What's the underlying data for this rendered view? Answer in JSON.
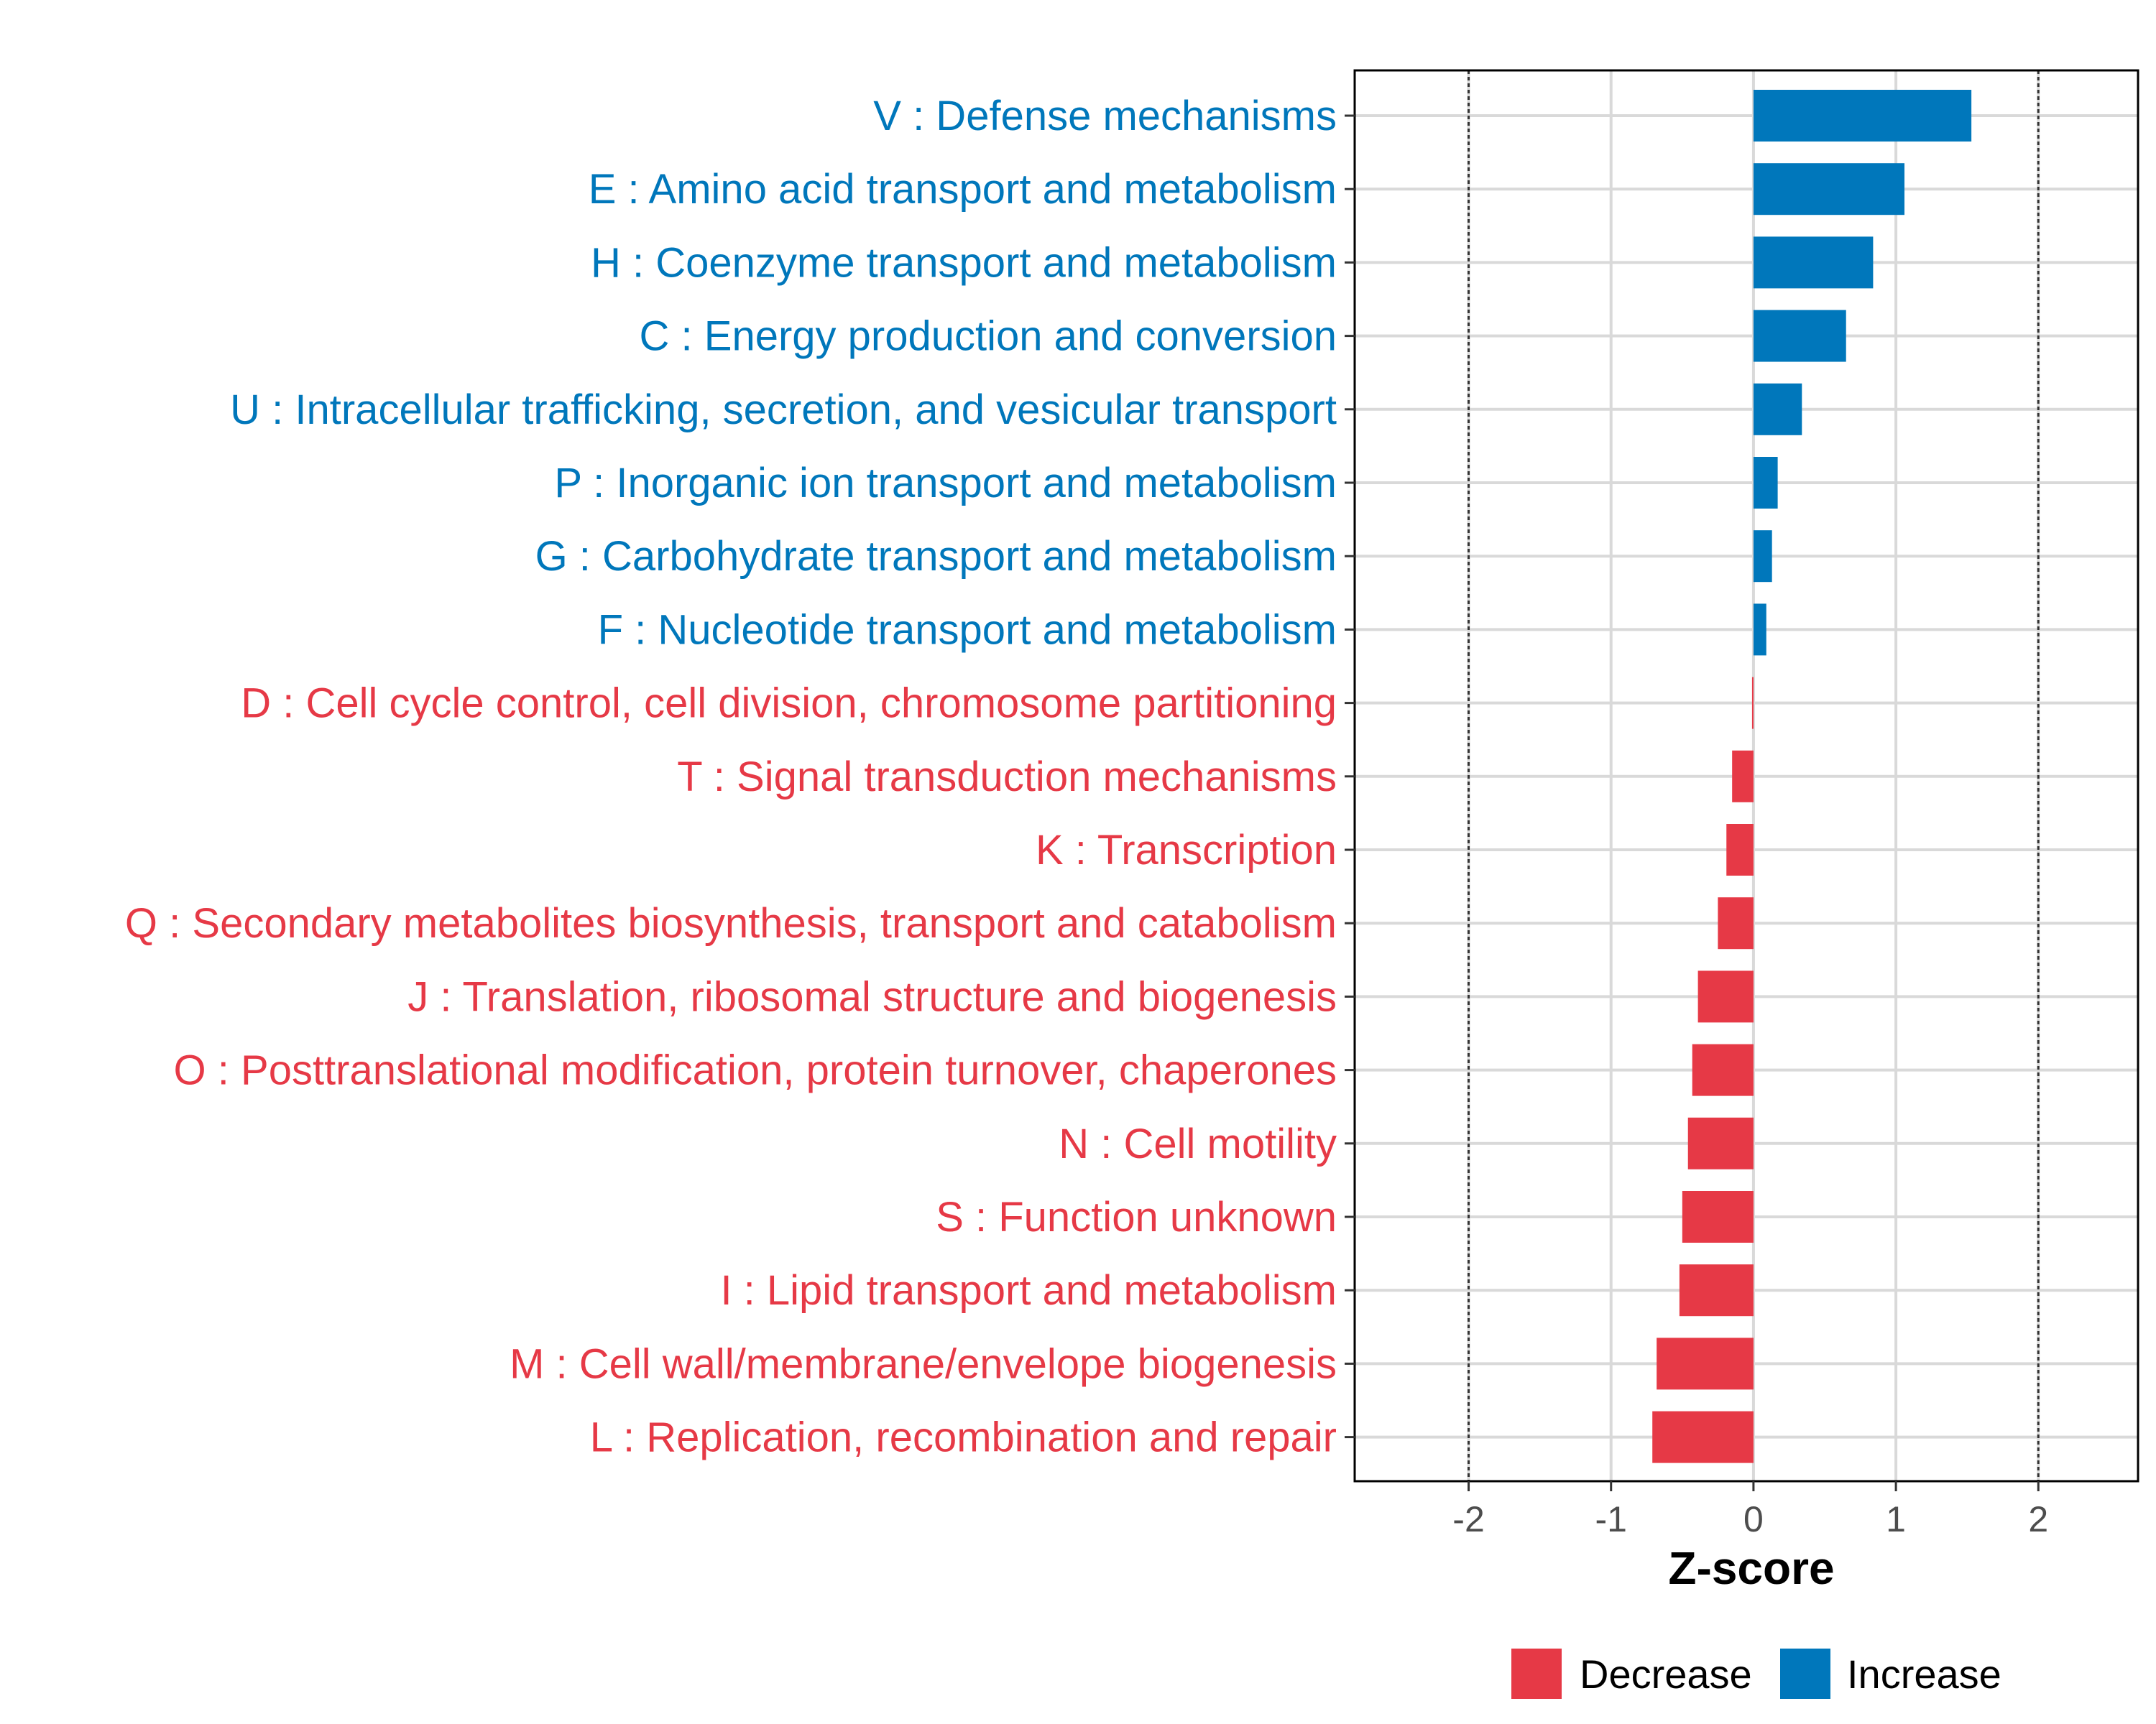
{
  "chart_data": {
    "type": "bar",
    "orientation": "horizontal",
    "xlabel": "Z-score",
    "xlim": [
      -2.8,
      2.7
    ],
    "xticks": [
      -2,
      -1,
      0,
      1,
      2
    ],
    "xtick_labels": [
      "-2",
      "-1",
      "0",
      "1",
      "2"
    ],
    "reference_lines": [
      -2,
      2
    ],
    "categories": [
      "V : Defense mechanisms",
      "E : Amino acid transport and metabolism",
      "H : Coenzyme transport and metabolism",
      "C : Energy production and conversion",
      "U : Intracellular trafficking, secretion, and vesicular transport",
      "P : Inorganic ion transport and metabolism",
      "G : Carbohydrate transport and metabolism",
      "F : Nucleotide transport and metabolism",
      "D : Cell cycle control, cell division, chromosome partitioning",
      "T : Signal transduction mechanisms",
      "K : Transcription",
      "Q : Secondary metabolites biosynthesis, transport and catabolism",
      "J : Translation, ribosomal structure and biogenesis",
      "O : Posttranslational modification, protein turnover, chaperones",
      "N : Cell motility",
      "S : Function unknown",
      "I : Lipid transport and metabolism",
      "M : Cell wall/membrane/envelope biogenesis",
      "L : Replication, recombination and repair"
    ],
    "values": [
      1.53,
      1.06,
      0.84,
      0.65,
      0.34,
      0.17,
      0.13,
      0.09,
      -0.01,
      -0.15,
      -0.19,
      -0.25,
      -0.39,
      -0.43,
      -0.46,
      -0.5,
      -0.52,
      -0.68,
      -0.71
    ],
    "groups": [
      "Increase",
      "Increase",
      "Increase",
      "Increase",
      "Increase",
      "Increase",
      "Increase",
      "Increase",
      "Decrease",
      "Decrease",
      "Decrease",
      "Decrease",
      "Decrease",
      "Decrease",
      "Decrease",
      "Decrease",
      "Decrease",
      "Decrease",
      "Decrease"
    ],
    "legend": [
      {
        "name": "Decrease",
        "color": "#E63946"
      },
      {
        "name": "Increase",
        "color": "#0077BB"
      }
    ],
    "legend_position": "bottom",
    "colors": {
      "Increase": "#0077BB",
      "Decrease": "#E63946"
    }
  }
}
